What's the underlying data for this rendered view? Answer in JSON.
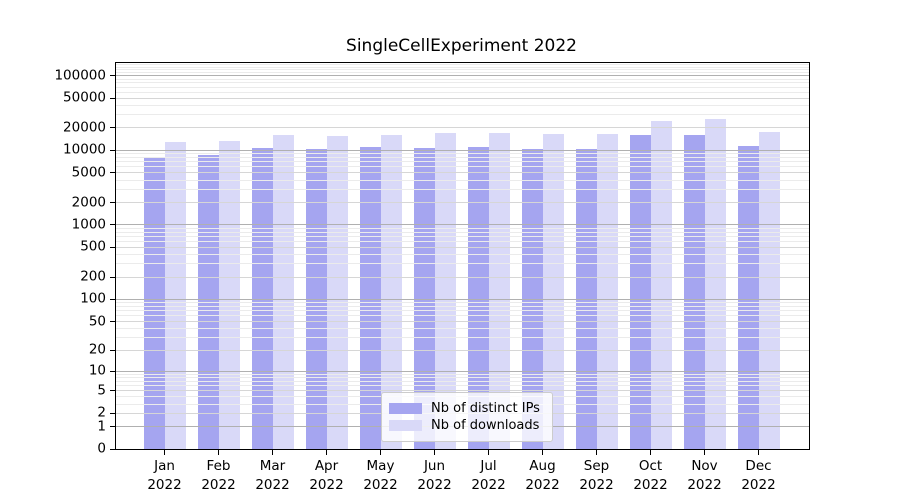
{
  "chart_data": {
    "type": "bar",
    "title": "SingleCellExperiment 2022",
    "categories": [
      "Jan 2022",
      "Feb 2022",
      "Mar 2022",
      "Apr 2022",
      "May 2022",
      "Jun 2022",
      "Jul 2022",
      "Aug 2022",
      "Sep 2022",
      "Oct 2022",
      "Nov 2022",
      "Dec 2022"
    ],
    "series": [
      {
        "name": "Nb of distinct IPs",
        "color": "#a5a5f0",
        "values": [
          8200,
          8700,
          10700,
          10300,
          11000,
          10900,
          11100,
          10300,
          10300,
          16000,
          16000,
          11300
        ]
      },
      {
        "name": "Nb of downloads",
        "color": "#d9d9f8",
        "values": [
          13000,
          13400,
          16200,
          15600,
          16200,
          17000,
          17300,
          16400,
          16800,
          25000,
          26600,
          17600
        ]
      }
    ],
    "xlabel": "",
    "ylabel": "",
    "yscale": "log1p",
    "ylim": [
      0,
      148000
    ],
    "yticks": [
      0,
      1,
      2,
      5,
      10,
      20,
      50,
      100,
      200,
      500,
      1000,
      2000,
      5000,
      10000,
      20000,
      50000,
      100000
    ],
    "grid": true,
    "legend_position": "lower center",
    "grid_colors": {
      "decade": "#b0b0b0",
      "labeled": "#d6d6d6",
      "minor": "#ebebeb"
    }
  }
}
